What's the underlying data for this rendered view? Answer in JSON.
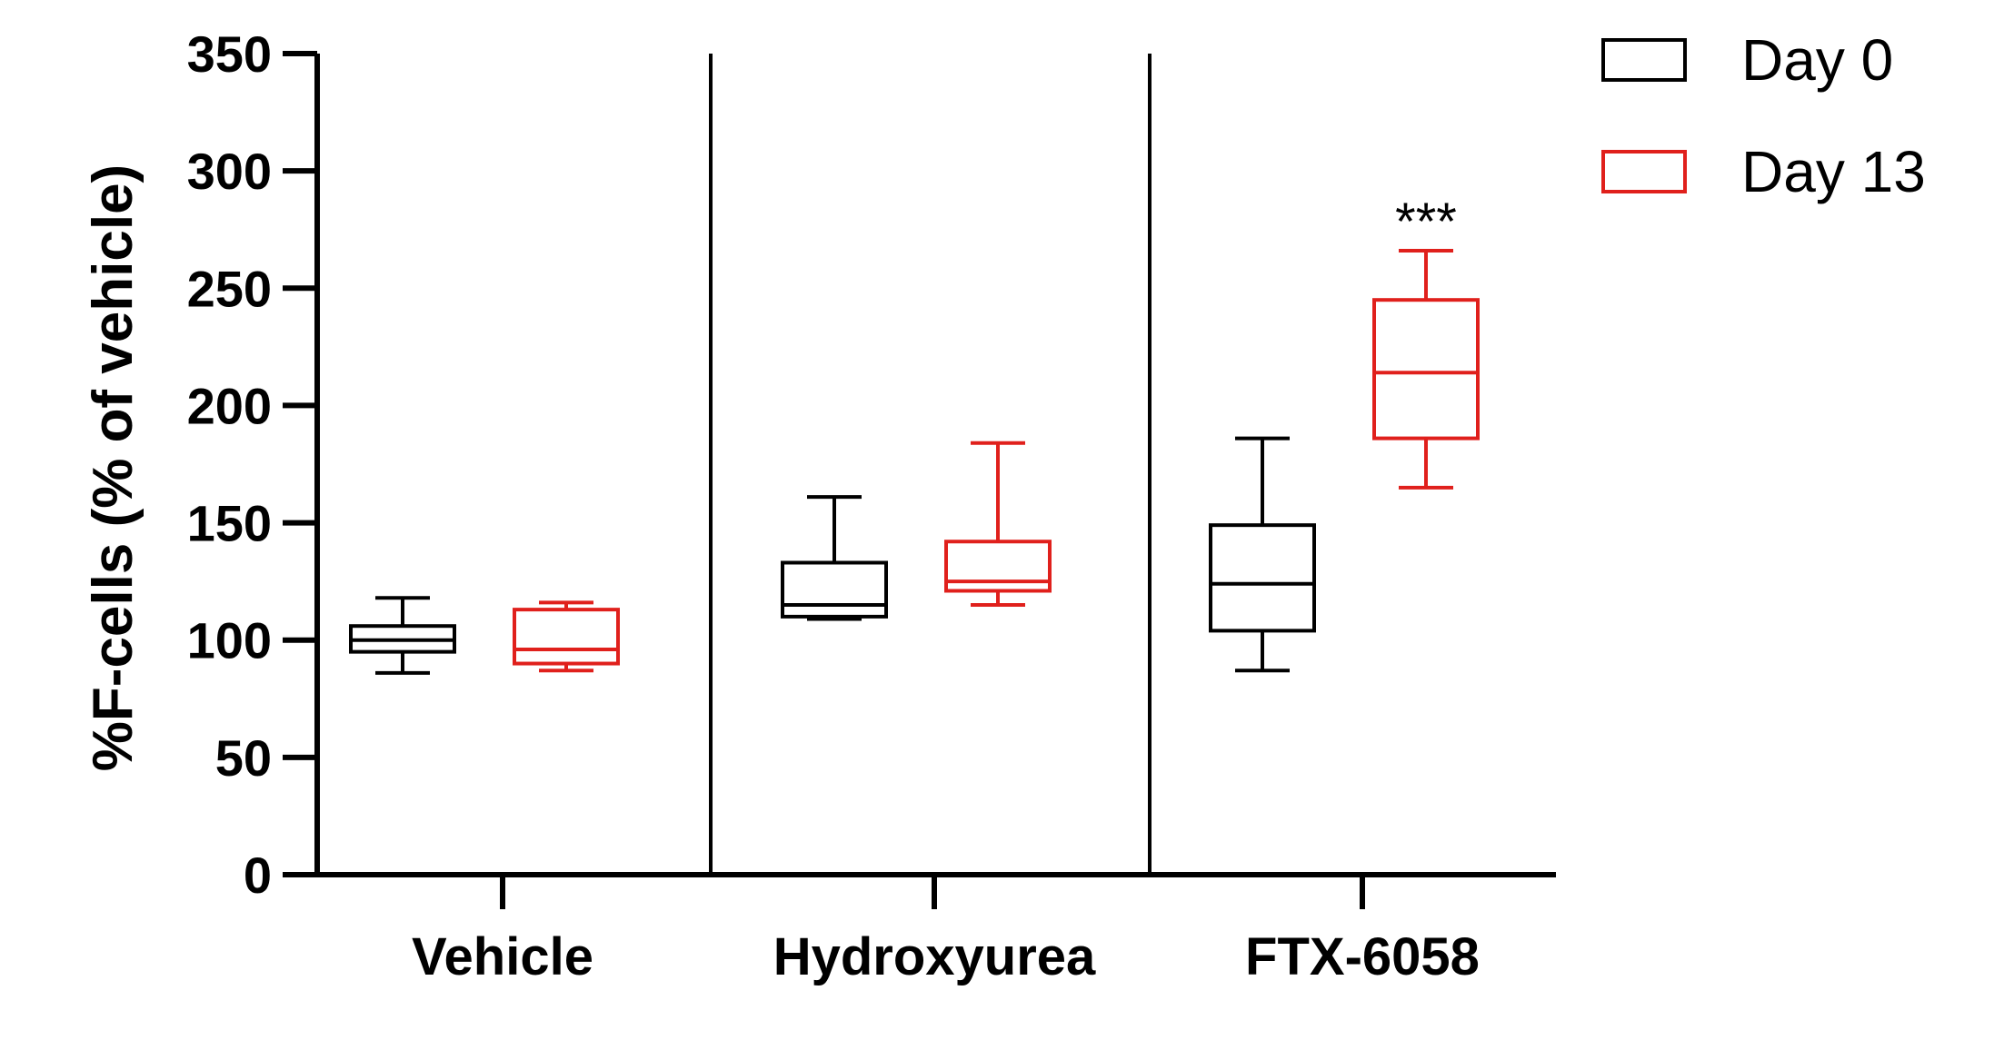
{
  "chart_data": {
    "type": "box",
    "ylabel": "%F-cells (% of vehicle)",
    "xlabel": "",
    "ylim": [
      0,
      350
    ],
    "yticks": [
      0,
      50,
      100,
      150,
      200,
      250,
      300,
      350
    ],
    "categories": [
      "Vehicle",
      "Hydroxyurea",
      "FTX-6058"
    ],
    "series": [
      {
        "name": "Day 0",
        "color": "#000000",
        "boxes": [
          {
            "min": 86,
            "q1": 95,
            "median": 100,
            "q3": 106,
            "max": 118
          },
          {
            "min": 109,
            "q1": 110,
            "median": 115,
            "q3": 133,
            "max": 161
          },
          {
            "min": 87,
            "q1": 104,
            "median": 124,
            "q3": 149,
            "max": 186
          }
        ]
      },
      {
        "name": "Day 13",
        "color": "#e0201c",
        "boxes": [
          {
            "min": 87,
            "q1": 90,
            "median": 96,
            "q3": 113,
            "max": 116
          },
          {
            "min": 115,
            "q1": 121,
            "median": 125,
            "q3": 142,
            "max": 184
          },
          {
            "min": 165,
            "q1": 186,
            "median": 214,
            "q3": 245,
            "max": 266
          }
        ]
      }
    ],
    "annotations": [
      {
        "text": "***",
        "category": "FTX-6058",
        "series": "Day 13"
      }
    ],
    "group_separators": true,
    "legend": "top-right"
  }
}
